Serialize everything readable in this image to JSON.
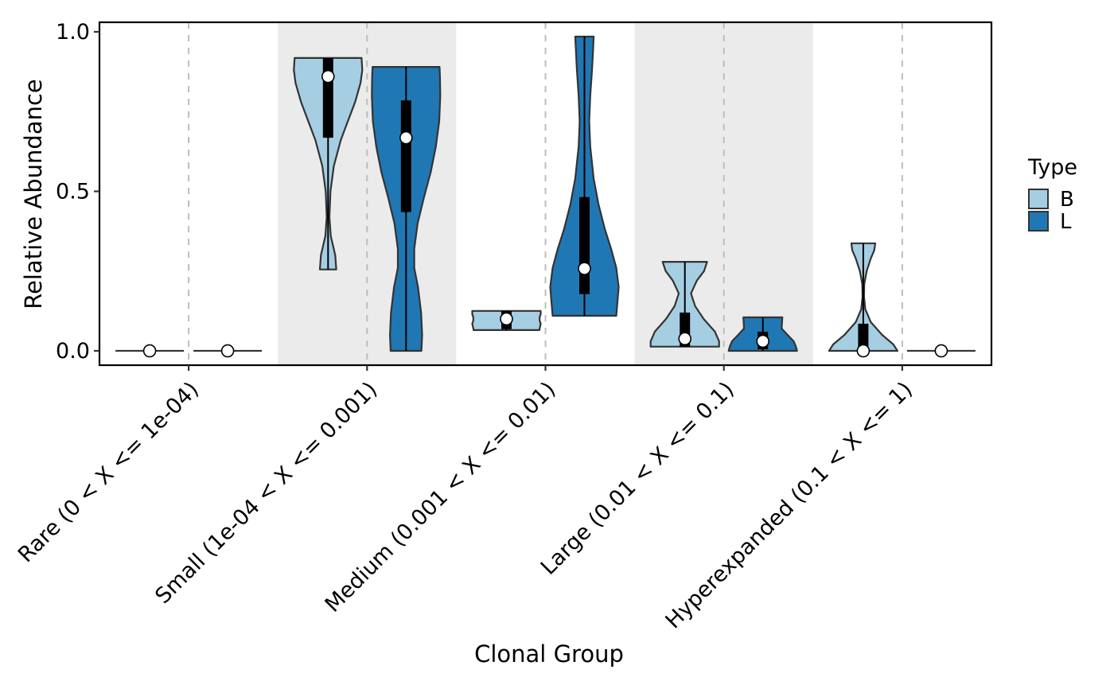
{
  "chart_data": {
    "type": "violin",
    "xlabel": "Clonal Group",
    "ylabel": "Relative Abundance",
    "categories": [
      "Rare (0 < X <= 1e-04)",
      "Small (1e-04 < X <= 0.001)",
      "Medium (0.001 < X <= 0.01)",
      "Large (0.01 < X <= 0.1)",
      "Hyperexpanded (0.1 < X <= 1)"
    ],
    "ylim": [
      -0.045,
      1.03
    ],
    "yticks": [
      0.0,
      0.5,
      1.0
    ],
    "ytick_labels": [
      "0.0",
      "0.5",
      "1.0"
    ],
    "shaded_bands": [
      1,
      3
    ],
    "legend": {
      "title": "Type",
      "position": "right",
      "entries": [
        {
          "label": "B",
          "color": "#a6cee3"
        },
        {
          "label": "L",
          "color": "#1f78b4"
        }
      ]
    },
    "series": [
      {
        "name": "B",
        "color": "#a6cee3",
        "groups": [
          {
            "category": "Rare (0 < X <= 1e-04)",
            "min": 0.0,
            "max": 0.0,
            "q1": 0.0,
            "q3": 0.0,
            "median": 0.0,
            "profile": [
              [
                0.0,
                1.0
              ]
            ]
          },
          {
            "category": "Small (1e-04 < X <= 0.001)",
            "min": 0.255,
            "max": 0.918,
            "q1": 0.668,
            "q3": 0.918,
            "median": 0.86,
            "profile": [
              [
                0.255,
                0.24
              ],
              [
                0.3,
                0.21
              ],
              [
                0.36,
                0.08
              ],
              [
                0.42,
                0.04
              ],
              [
                0.5,
                0.07
              ],
              [
                0.58,
                0.17
              ],
              [
                0.66,
                0.37
              ],
              [
                0.72,
                0.58
              ],
              [
                0.78,
                0.79
              ],
              [
                0.84,
                0.95
              ],
              [
                0.88,
                1.0
              ],
              [
                0.918,
                0.98
              ]
            ]
          },
          {
            "category": "Medium (0.001 < X <= 0.01)",
            "min": 0.065,
            "max": 0.125,
            "q1": 0.068,
            "q3": 0.125,
            "median": 0.1,
            "profile": [
              [
                0.065,
                0.96
              ],
              [
                0.085,
                1.0
              ],
              [
                0.095,
                0.97
              ],
              [
                0.105,
                0.97
              ],
              [
                0.115,
                1.0
              ],
              [
                0.125,
                1.0
              ]
            ]
          },
          {
            "category": "Large (0.01 < X <= 0.1)",
            "min": 0.013,
            "max": 0.279,
            "q1": 0.013,
            "q3": 0.12,
            "median": 0.038,
            "profile": [
              [
                0.013,
                1.0
              ],
              [
                0.03,
                1.0
              ],
              [
                0.06,
                0.88
              ],
              [
                0.1,
                0.55
              ],
              [
                0.14,
                0.3
              ],
              [
                0.18,
                0.18
              ],
              [
                0.22,
                0.35
              ],
              [
                0.25,
                0.56
              ],
              [
                0.279,
                0.65
              ]
            ]
          },
          {
            "category": "Hyperexpanded (0.1 < X <= 1)",
            "min": 0.0,
            "max": 0.337,
            "q1": 0.0,
            "q3": 0.085,
            "median": 0.0,
            "profile": [
              [
                0.0,
                1.0
              ],
              [
                0.02,
                0.88
              ],
              [
                0.05,
                0.55
              ],
              [
                0.09,
                0.22
              ],
              [
                0.13,
                0.06
              ],
              [
                0.17,
                0.02
              ],
              [
                0.21,
                0.03
              ],
              [
                0.25,
                0.1
              ],
              [
                0.29,
                0.22
              ],
              [
                0.315,
                0.32
              ],
              [
                0.337,
                0.35
              ]
            ]
          }
        ]
      },
      {
        "name": "L",
        "color": "#1f78b4",
        "groups": [
          {
            "category": "Rare (0 < X <= 1e-04)",
            "min": 0.0,
            "max": 0.0,
            "q1": 0.0,
            "q3": 0.0,
            "median": 0.0,
            "profile": [
              [
                0.0,
                1.0
              ]
            ]
          },
          {
            "category": "Small (1e-04 < X <= 0.001)",
            "min": 0.0,
            "max": 0.89,
            "q1": 0.435,
            "q3": 0.785,
            "median": 0.668,
            "profile": [
              [
                0.0,
                0.45
              ],
              [
                0.05,
                0.47
              ],
              [
                0.12,
                0.44
              ],
              [
                0.2,
                0.35
              ],
              [
                0.26,
                0.24
              ],
              [
                0.32,
                0.24
              ],
              [
                0.4,
                0.34
              ],
              [
                0.48,
                0.52
              ],
              [
                0.56,
                0.72
              ],
              [
                0.64,
                0.87
              ],
              [
                0.72,
                0.97
              ],
              [
                0.8,
                1.0
              ],
              [
                0.86,
                0.99
              ],
              [
                0.89,
                0.98
              ]
            ]
          },
          {
            "category": "Medium (0.001 < X <= 0.01)",
            "min": 0.11,
            "max": 0.985,
            "q1": 0.178,
            "q3": 0.482,
            "median": 0.258,
            "profile": [
              [
                0.11,
                0.93
              ],
              [
                0.16,
                0.97
              ],
              [
                0.2,
                1.0
              ],
              [
                0.26,
                0.93
              ],
              [
                0.32,
                0.78
              ],
              [
                0.38,
                0.6
              ],
              [
                0.46,
                0.41
              ],
              [
                0.54,
                0.27
              ],
              [
                0.64,
                0.17
              ],
              [
                0.72,
                0.14
              ],
              [
                0.8,
                0.17
              ],
              [
                0.88,
                0.22
              ],
              [
                0.94,
                0.25
              ],
              [
                0.985,
                0.27
              ]
            ]
          },
          {
            "category": "Large (0.01 < X <= 0.1)",
            "min": 0.0,
            "max": 0.105,
            "q1": 0.005,
            "q3": 0.06,
            "median": 0.03,
            "profile": [
              [
                0.0,
                1.0
              ],
              [
                0.015,
                0.96
              ],
              [
                0.03,
                0.9
              ],
              [
                0.05,
                0.72
              ],
              [
                0.07,
                0.55
              ],
              [
                0.09,
                0.56
              ],
              [
                0.105,
                0.57
              ]
            ]
          },
          {
            "category": "Hyperexpanded (0.1 < X <= 1)",
            "min": 0.0,
            "max": 0.0,
            "q1": 0.0,
            "q3": 0.0,
            "median": 0.0,
            "profile": [
              [
                0.0,
                1.0
              ]
            ]
          }
        ]
      }
    ]
  }
}
